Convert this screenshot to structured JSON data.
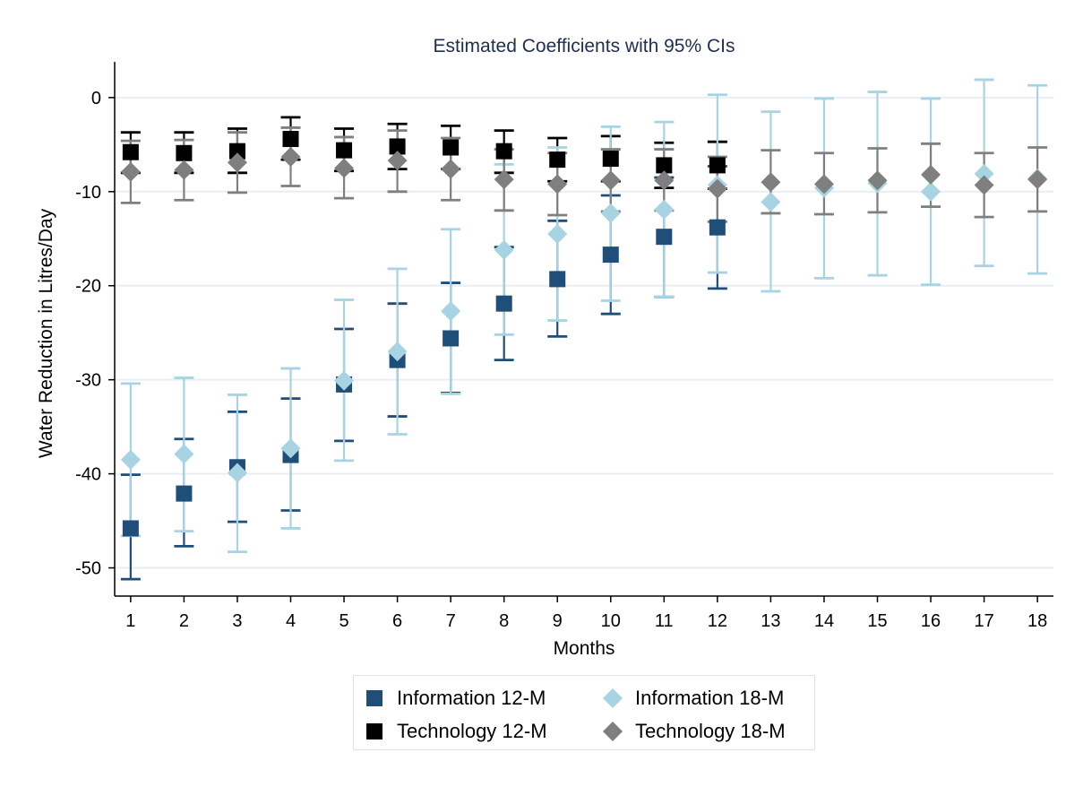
{
  "chart_data": {
    "type": "scatter",
    "title": "Estimated Coefficients with 95% CIs",
    "xlabel": "Months",
    "ylabel": "Water Reduction in Litres/Day",
    "xlim": [
      0.7,
      18.3
    ],
    "ylim": [
      -53.0,
      3.8
    ],
    "x_ticks": [
      "1",
      "2",
      "3",
      "4",
      "5",
      "6",
      "7",
      "8",
      "9",
      "10",
      "11",
      "12",
      "13",
      "14",
      "15",
      "16",
      "17",
      "18"
    ],
    "y_ticks": [
      "0",
      "-10",
      "-20",
      "-30",
      "-40",
      "-50"
    ],
    "y_tick_values": [
      0,
      -10,
      -20,
      -30,
      -40,
      -50
    ],
    "grid": "horizontal",
    "legend_position": "bottom",
    "series": [
      {
        "name": "Information 12-M",
        "color": "#1f4e79",
        "marker": "square",
        "x": [
          1,
          2,
          3,
          4,
          5,
          6,
          7,
          8,
          9,
          10,
          11,
          12
        ],
        "y": [
          -45.8,
          -42.1,
          -39.3,
          -38.0,
          -30.5,
          -27.9,
          -25.6,
          -21.9,
          -19.3,
          -16.7,
          -14.8,
          -13.8
        ],
        "ci_low": [
          -51.2,
          -47.7,
          -45.1,
          -43.9,
          -36.5,
          -33.9,
          -31.4,
          -27.9,
          -25.4,
          -23.0,
          -21.2,
          -20.3
        ],
        "ci_high": [
          -40.1,
          -36.3,
          -33.4,
          -32.0,
          -24.6,
          -21.9,
          -19.7,
          -15.9,
          -13.1,
          -10.4,
          -8.5,
          -7.3
        ]
      },
      {
        "name": "Technology 12-M",
        "color": "#000000",
        "marker": "square",
        "x": [
          1,
          2,
          3,
          4,
          5,
          6,
          7,
          8,
          9,
          10,
          11,
          12
        ],
        "y": [
          -5.8,
          -5.9,
          -5.7,
          -4.4,
          -5.6,
          -5.2,
          -5.3,
          -5.7,
          -6.6,
          -6.5,
          -7.2,
          -7.2
        ],
        "ci_low": [
          -8.0,
          -8.0,
          -8.0,
          -6.6,
          -7.8,
          -7.6,
          -7.6,
          -8.0,
          -8.9,
          -8.9,
          -9.6,
          -9.7
        ],
        "ci_high": [
          -3.7,
          -3.7,
          -3.3,
          -2.1,
          -3.3,
          -2.8,
          -3.0,
          -3.5,
          -4.3,
          -4.1,
          -4.8,
          -4.7
        ]
      },
      {
        "name": "Information 18-M",
        "color": "#a8d3e3",
        "marker": "diamond",
        "x": [
          1,
          2,
          3,
          4,
          5,
          6,
          7,
          8,
          9,
          10,
          11,
          12,
          13,
          14,
          15,
          16,
          17,
          18
        ],
        "y": [
          -38.5,
          -37.9,
          -39.9,
          -37.3,
          -30.1,
          -27.0,
          -22.7,
          -16.2,
          -14.5,
          -12.3,
          -11.9,
          -9.3,
          -11.1,
          -9.6,
          -9.1,
          -10.0,
          -8.1,
          -8.6
        ],
        "ci_low": [
          -46.6,
          -46.1,
          -48.3,
          -45.8,
          -38.6,
          -35.8,
          -31.5,
          -25.2,
          -23.7,
          -21.6,
          -21.2,
          -18.6,
          -20.6,
          -19.2,
          -18.9,
          -19.9,
          -17.9,
          -18.7
        ],
        "ci_high": [
          -30.4,
          -29.8,
          -31.6,
          -28.8,
          -21.5,
          -18.2,
          -14.0,
          -7.1,
          -5.3,
          -3.1,
          -2.6,
          0.3,
          -1.5,
          -0.1,
          0.6,
          -0.1,
          1.9,
          1.3
        ]
      },
      {
        "name": "Technology 18-M",
        "color": "#7f7f7f",
        "marker": "diamond",
        "x": [
          1,
          2,
          3,
          4,
          5,
          6,
          7,
          8,
          9,
          10,
          11,
          12,
          13,
          14,
          15,
          16,
          17,
          18
        ],
        "y": [
          -7.9,
          -7.7,
          -6.9,
          -6.3,
          -7.5,
          -6.7,
          -7.6,
          -8.7,
          -9.2,
          -8.8,
          -8.8,
          -9.7,
          -9.0,
          -9.2,
          -8.8,
          -8.2,
          -9.3,
          -8.7
        ],
        "ci_low": [
          -11.2,
          -10.9,
          -10.1,
          -9.4,
          -10.7,
          -10.0,
          -10.9,
          -12.0,
          -12.5,
          -12.1,
          -12.0,
          -13.2,
          -12.3,
          -12.4,
          -12.2,
          -11.6,
          -12.7,
          -12.1
        ],
        "ci_high": [
          -4.6,
          -4.5,
          -3.7,
          -3.2,
          -4.2,
          -3.5,
          -4.3,
          -5.5,
          -5.9,
          -5.5,
          -5.5,
          -6.3,
          -5.6,
          -5.9,
          -5.4,
          -4.9,
          -5.9,
          -5.3
        ]
      }
    ]
  },
  "legend": {
    "info12": {
      "label": "Information 12-M",
      "color": "#1f4e79"
    },
    "info18": {
      "label": "Information 18-M",
      "color": "#a8d3e3"
    },
    "tech12": {
      "label": "Technology 12-M",
      "color": "#000000"
    },
    "tech18": {
      "label": "Technology 18-M",
      "color": "#7f7f7f"
    }
  }
}
